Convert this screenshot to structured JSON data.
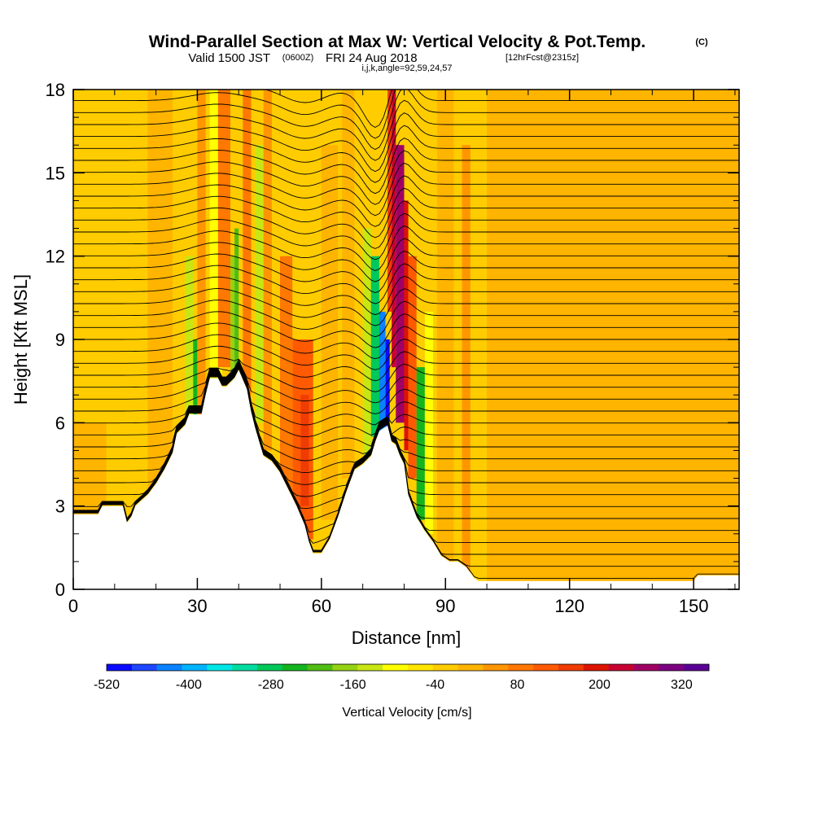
{
  "title": {
    "main": "Wind-Parallel Section at Max W: Vertical Velocity & Pot.Temp.",
    "main_mark": "(C)",
    "valid_prefix": "Valid 1500 JST",
    "valid_zulu": "(0600Z)",
    "valid_date": "FRI 24 Aug 2018",
    "forecast": "[12hrFcst@2315z]",
    "indices": "i,j,k,angle=92,59,24,57"
  },
  "chart_data": {
    "type": "heatmap",
    "xlabel": "Distance [nm]",
    "ylabel": "Height [Kft MSL]",
    "xlim": [
      0,
      161
    ],
    "ylim": [
      0,
      18
    ],
    "xticks": [
      0,
      30,
      60,
      90,
      120,
      150
    ],
    "yticks": [
      0,
      3,
      6,
      9,
      12,
      15,
      18
    ],
    "colorbar": {
      "title": "Vertical Velocity [cm/s]",
      "tick_labels": [
        -520,
        -400,
        -280,
        -160,
        -40,
        80,
        200,
        320
      ],
      "min": -520,
      "max": 360,
      "step": 40,
      "colors": [
        "#0a0aff",
        "#1e46ff",
        "#0a82ff",
        "#00b4ff",
        "#00e6e6",
        "#00dca0",
        "#00c85a",
        "#14b41e",
        "#50be14",
        "#96d214",
        "#c8e614",
        "#ffff00",
        "#ffe600",
        "#ffcc00",
        "#ffb400",
        "#ff9600",
        "#ff7800",
        "#ff5a00",
        "#f03c00",
        "#dc1400",
        "#c80032",
        "#a00064",
        "#7d0082",
        "#5a0096"
      ]
    },
    "terrain_kft": [
      [
        0,
        2.7
      ],
      [
        6,
        2.7
      ],
      [
        7,
        3.0
      ],
      [
        12,
        3.0
      ],
      [
        13,
        2.4
      ],
      [
        14,
        2.6
      ],
      [
        15,
        3.0
      ],
      [
        18,
        3.4
      ],
      [
        20,
        3.8
      ],
      [
        22,
        4.3
      ],
      [
        24,
        4.9
      ],
      [
        25,
        5.6
      ],
      [
        27,
        5.9
      ],
      [
        28,
        6.3
      ],
      [
        31,
        6.3
      ],
      [
        32,
        7.0
      ],
      [
        33,
        7.6
      ],
      [
        35,
        7.6
      ],
      [
        36,
        7.3
      ],
      [
        37,
        7.3
      ],
      [
        39,
        7.6
      ],
      [
        40,
        7.9
      ],
      [
        42,
        7.2
      ],
      [
        43,
        6.4
      ],
      [
        44,
        5.8
      ],
      [
        46,
        4.8
      ],
      [
        48,
        4.6
      ],
      [
        50,
        4.2
      ],
      [
        52,
        3.6
      ],
      [
        54,
        3.0
      ],
      [
        56,
        2.3
      ],
      [
        57,
        1.7
      ],
      [
        58,
        1.3
      ],
      [
        60,
        1.3
      ],
      [
        62,
        1.8
      ],
      [
        64,
        2.6
      ],
      [
        66,
        3.5
      ],
      [
        68,
        4.3
      ],
      [
        70,
        4.5
      ],
      [
        72,
        4.8
      ],
      [
        73,
        5.3
      ],
      [
        74,
        5.7
      ],
      [
        76,
        5.9
      ],
      [
        77,
        5.3
      ],
      [
        78,
        5.2
      ],
      [
        79,
        4.8
      ],
      [
        80,
        4.5
      ],
      [
        81,
        3.4
      ],
      [
        83,
        2.6
      ],
      [
        85,
        2.1
      ],
      [
        87,
        1.7
      ],
      [
        89,
        1.2
      ],
      [
        91,
        1.0
      ],
      [
        93,
        1.0
      ],
      [
        95,
        0.8
      ],
      [
        96,
        0.6
      ],
      [
        97,
        0.4
      ],
      [
        98,
        0.3
      ],
      [
        104,
        0.3
      ],
      [
        106,
        0.3
      ],
      [
        110,
        0.3
      ],
      [
        125,
        0.3
      ],
      [
        130,
        0.3
      ],
      [
        140,
        0.3
      ],
      [
        150,
        0.3
      ],
      [
        151,
        0.5
      ],
      [
        161,
        0.5
      ]
    ],
    "updraft_cores": [
      {
        "x_nm": 79,
        "z_kft": 11.5,
        "w_cms": 360
      },
      {
        "x_nm": 56,
        "z_kft": 6.5,
        "w_cms": 180
      },
      {
        "x_nm": 37,
        "z_kft": 12,
        "w_cms": 140
      },
      {
        "x_nm": 43,
        "z_kft": 10,
        "w_cms": 120
      }
    ],
    "downdraft_cores": [
      {
        "x_nm": 75,
        "z_kft": 8,
        "w_cms": -520
      },
      {
        "x_nm": 30,
        "z_kft": 8,
        "w_cms": -220
      },
      {
        "x_nm": 40,
        "z_kft": 11,
        "w_cms": -180
      },
      {
        "x_nm": 84,
        "z_kft": 5,
        "w_cms": -220
      }
    ]
  }
}
